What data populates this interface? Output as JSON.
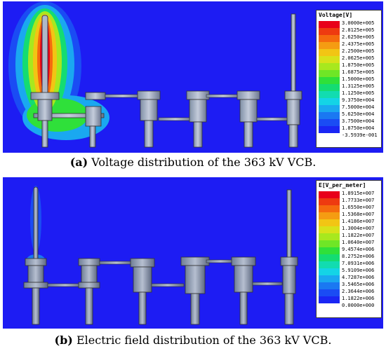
{
  "panel_a": {
    "legend_title": "Voltage[V]",
    "scale_labels": [
      "3.0000e+005",
      "2.8125e+005",
      "2.6250e+005",
      "2.4375e+005",
      "2.2500e+005",
      "2.0625e+005",
      "1.8750e+005",
      "1.6875e+005",
      "1.5000e+005",
      "1.3125e+005",
      "1.1250e+005",
      "9.3750e+004",
      "7.5000e+004",
      "5.6250e+004",
      "3.7500e+004",
      "1.8750e+004",
      "-3.5939e-001"
    ],
    "caption_label": "(a)",
    "caption_text": " Voltage distribution of the 363 kV VCB."
  },
  "panel_b": {
    "legend_title": "E[V_per_meter]",
    "scale_labels": [
      "1.8915e+007",
      "1.7733e+007",
      "1.6550e+007",
      "1.5368e+007",
      "1.4186e+007",
      "1.3004e+007",
      "1.1822e+007",
      "1.0640e+007",
      "9.4574e+006",
      "8.2752e+006",
      "7.0931e+006",
      "5.9109e+006",
      "4.7287e+006",
      "3.5465e+006",
      "2.3644e+006",
      "1.1822e+006",
      "0.0000e+000"
    ],
    "caption_label": "(b)",
    "caption_text": " Electric field distribution of the 363 kV VCB."
  },
  "colors": {
    "background_field": "#1d1cf3",
    "scale": [
      "#e8001a",
      "#ee3a10",
      "#f56a0e",
      "#f59c12",
      "#f2c514",
      "#d8e21a",
      "#a8e81e",
      "#6fe626",
      "#2fe03a",
      "#14dc72",
      "#12dcb0",
      "#14d4e6",
      "#1aa8f0",
      "#1a78f2",
      "#1a4cf4",
      "#1a26f4"
    ]
  },
  "icons": {
    "conductor": "gray-cylinder-electrode"
  }
}
